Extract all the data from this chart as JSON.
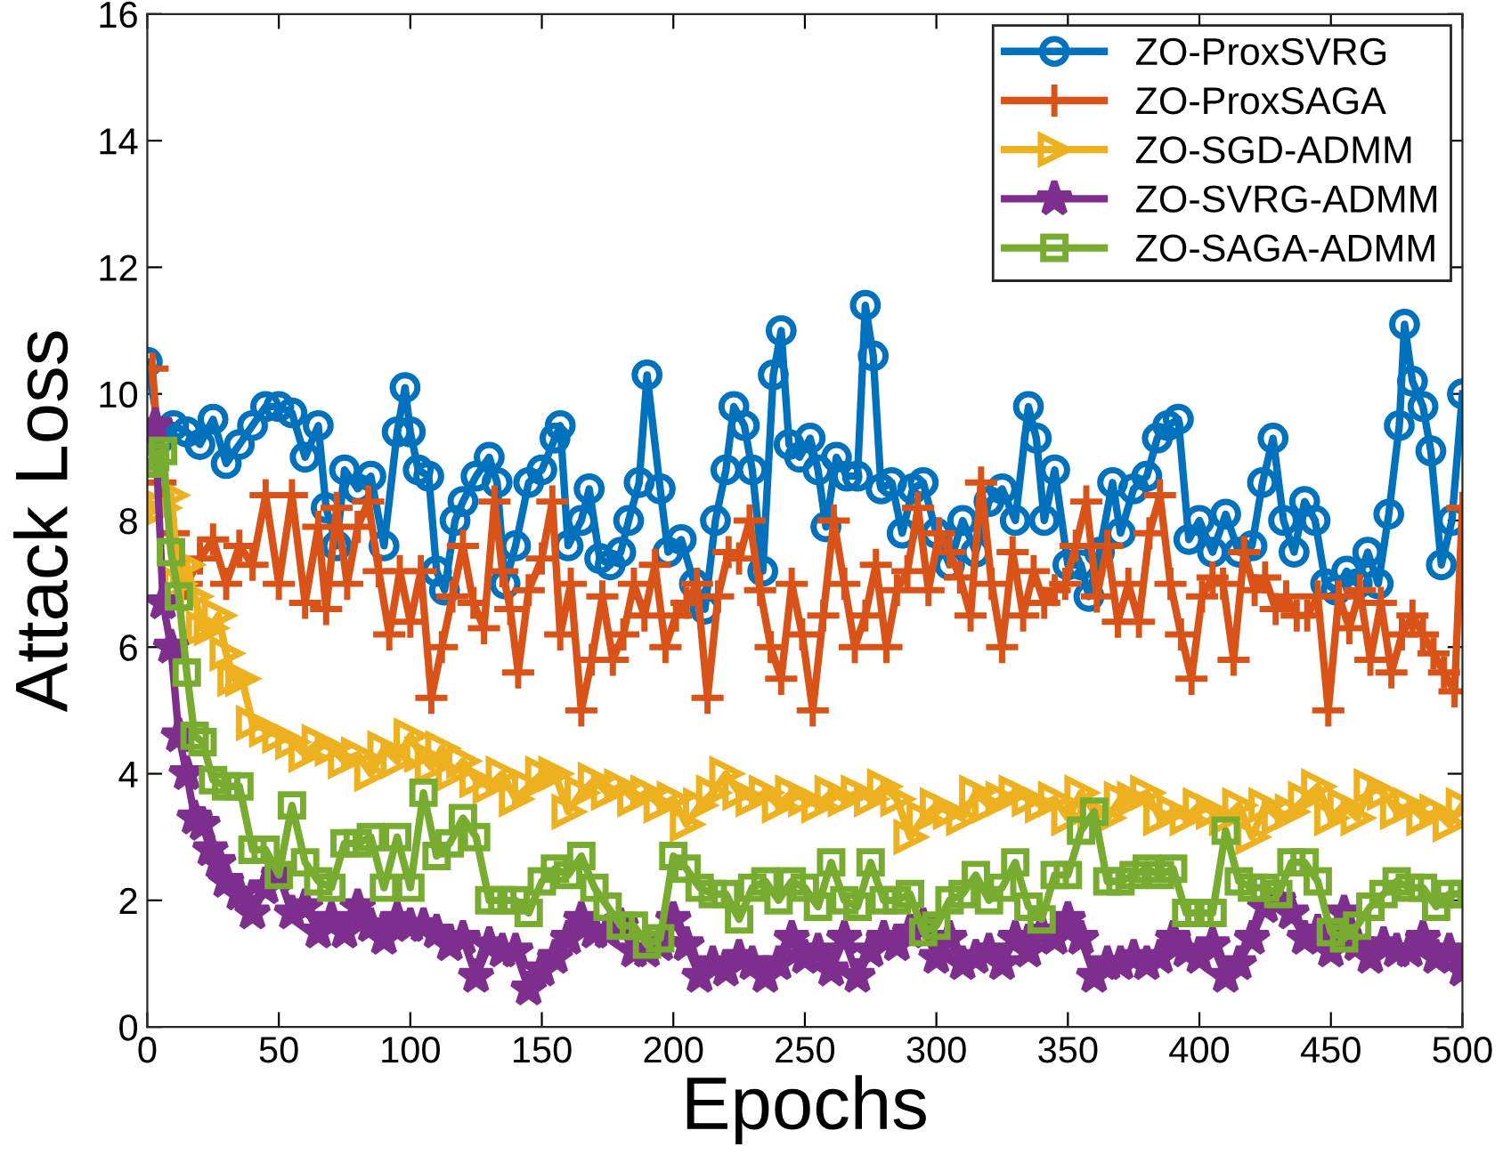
{
  "chart_data": {
    "type": "line",
    "xlabel": "Epochs",
    "ylabel": "Attack Loss",
    "xlim": [
      0,
      500
    ],
    "ylim": [
      0,
      16
    ],
    "xticks": [
      0,
      50,
      100,
      150,
      200,
      250,
      300,
      350,
      400,
      450,
      500
    ],
    "yticks": [
      0,
      2,
      4,
      6,
      8,
      10,
      12,
      14,
      16
    ],
    "grid": false,
    "legend": "top right",
    "line_style": "solid",
    "series": [
      {
        "name": "ZO-ProxSVRG",
        "color": "#0072bd",
        "marker": "circle",
        "x": [
          0,
          5,
          10,
          15,
          20,
          25,
          30,
          35,
          40,
          45,
          50,
          55,
          60,
          65,
          68,
          72,
          75,
          80,
          85,
          90,
          95,
          98,
          100,
          103,
          107,
          110,
          113,
          117,
          120,
          125,
          130,
          133,
          136,
          140,
          145,
          150,
          155,
          157,
          160,
          165,
          168,
          172,
          176,
          180,
          183,
          187,
          190,
          195,
          198,
          203,
          208,
          212,
          216,
          220,
          223,
          227,
          230,
          234,
          238,
          241,
          244,
          248,
          252,
          255,
          258,
          262,
          266,
          270,
          273,
          276,
          279,
          283,
          287,
          291,
          295,
          300,
          305,
          310,
          315,
          320,
          325,
          330,
          335,
          338,
          341,
          345,
          350,
          355,
          358,
          362,
          367,
          370,
          375,
          380,
          384,
          388,
          392,
          396,
          400,
          405,
          410,
          415,
          420,
          424,
          428,
          432,
          436,
          440,
          444,
          448,
          452,
          456,
          460,
          464,
          468,
          472,
          476,
          478,
          481,
          485,
          488,
          492,
          496,
          500
        ],
        "values": [
          10.5,
          9.3,
          9.5,
          9.4,
          9.2,
          9.6,
          8.9,
          9.2,
          9.5,
          9.8,
          9.8,
          9.7,
          9.0,
          9.5,
          8.2,
          7.6,
          8.8,
          8.5,
          8.7,
          7.6,
          9.4,
          10.1,
          9.4,
          8.8,
          8.7,
          7.2,
          6.9,
          8.0,
          8.3,
          8.7,
          9.0,
          8.6,
          7.0,
          7.6,
          8.6,
          8.8,
          9.3,
          9.5,
          7.6,
          8.0,
          8.5,
          7.4,
          7.3,
          7.5,
          8.0,
          8.6,
          10.3,
          8.5,
          7.5,
          7.7,
          7.0,
          6.6,
          8.0,
          8.8,
          9.8,
          9.5,
          8.8,
          7.2,
          10.3,
          11.0,
          9.2,
          9.0,
          9.3,
          8.8,
          7.9,
          9.0,
          8.7,
          8.7,
          11.4,
          10.6,
          8.5,
          8.6,
          7.8,
          8.5,
          8.6,
          7.8,
          7.3,
          8.0,
          7.5,
          8.3,
          8.5,
          8.0,
          9.8,
          9.3,
          8.0,
          8.8,
          7.3,
          7.3,
          6.8,
          7.5,
          8.6,
          7.8,
          8.5,
          8.7,
          9.3,
          9.5,
          9.6,
          7.7,
          8.0,
          7.5,
          8.1,
          7.5,
          7.6,
          8.6,
          9.3,
          8.0,
          7.5,
          8.3,
          8.0,
          7.0,
          6.9,
          7.2,
          7.0,
          7.5,
          7.0,
          8.1,
          9.5,
          11.1,
          10.2,
          9.8,
          9.1,
          7.3,
          8.0,
          10.0
        ]
      },
      {
        "name": "ZO-ProxSAGA",
        "color": "#d95319",
        "marker": "cross",
        "x": [
          2,
          5,
          10,
          15,
          20,
          25,
          30,
          35,
          40,
          45,
          50,
          55,
          60,
          65,
          68,
          72,
          76,
          80,
          84,
          88,
          92,
          96,
          100,
          104,
          108,
          112,
          116,
          120,
          124,
          128,
          132,
          135,
          138,
          141,
          145,
          150,
          154,
          157,
          161,
          165,
          169,
          173,
          177,
          181,
          185,
          189,
          193,
          197,
          201,
          205,
          209,
          213,
          217,
          221,
          225,
          229,
          233,
          237,
          241,
          245,
          249,
          253,
          257,
          261,
          265,
          269,
          273,
          277,
          281,
          285,
          289,
          293,
          297,
          301,
          305,
          309,
          313,
          317,
          321,
          325,
          329,
          333,
          337,
          341,
          345,
          349,
          353,
          357,
          361,
          365,
          369,
          373,
          377,
          381,
          385,
          389,
          393,
          397,
          401,
          405,
          409,
          413,
          417,
          421,
          425,
          429,
          433,
          437,
          441,
          445,
          449,
          453,
          457,
          461,
          465,
          469,
          473,
          477,
          481,
          485,
          489,
          493,
          497,
          500
        ],
        "values": [
          10.4,
          8.6,
          7.8,
          7.0,
          7.4,
          7.7,
          7.0,
          7.6,
          7.3,
          8.4,
          7.0,
          8.4,
          6.7,
          7.9,
          6.6,
          8.2,
          7.0,
          7.9,
          8.3,
          7.2,
          6.2,
          7.2,
          6.4,
          7.2,
          5.2,
          6.0,
          6.8,
          7.6,
          6.7,
          6.3,
          8.3,
          7.2,
          6.6,
          5.6,
          6.9,
          7.4,
          8.3,
          6.2,
          7.0,
          5.0,
          5.8,
          6.8,
          5.8,
          6.2,
          7.0,
          6.5,
          7.3,
          6.0,
          6.5,
          6.7,
          7.0,
          5.2,
          6.8,
          7.5,
          7.4,
          8.0,
          6.9,
          6.0,
          5.5,
          7.0,
          6.2,
          5.0,
          6.5,
          8.0,
          7.0,
          6.0,
          6.5,
          7.3,
          6.0,
          6.9,
          7.2,
          8.2,
          6.9,
          7.8,
          7.5,
          7.1,
          6.5,
          8.6,
          7.0,
          6.0,
          7.5,
          6.5,
          7.2,
          6.7,
          6.9,
          7.0,
          7.6,
          8.3,
          6.8,
          7.6,
          6.4,
          7.0,
          6.4,
          7.8,
          8.4,
          7.0,
          6.2,
          5.5,
          6.8,
          7.1,
          7.0,
          5.8,
          7.5,
          6.9,
          7.1,
          6.6,
          6.8,
          6.5,
          6.5,
          6.8,
          5.0,
          6.8,
          6.3,
          6.9,
          5.8,
          6.7,
          5.6,
          6.2,
          6.5,
          6.2,
          5.9,
          5.6,
          5.3,
          8.2
        ]
      },
      {
        "name": "ZO-SGD-ADMM",
        "color": "#edb120",
        "marker": "triangle",
        "x": [
          0,
          6,
          9,
          12,
          15,
          18,
          21,
          24,
          27,
          30,
          33,
          36,
          40,
          45,
          50,
          55,
          60,
          65,
          70,
          75,
          80,
          85,
          90,
          95,
          100,
          104,
          108,
          112,
          116,
          120,
          125,
          130,
          135,
          140,
          145,
          150,
          155,
          160,
          165,
          170,
          175,
          180,
          185,
          190,
          195,
          200,
          205,
          210,
          215,
          220,
          225,
          230,
          235,
          240,
          245,
          250,
          255,
          260,
          265,
          270,
          275,
          280,
          285,
          290,
          295,
          300,
          305,
          310,
          315,
          320,
          325,
          330,
          335,
          340,
          345,
          350,
          355,
          360,
          365,
          370,
          375,
          380,
          385,
          390,
          395,
          400,
          405,
          410,
          415,
          420,
          425,
          430,
          435,
          440,
          445,
          450,
          455,
          460,
          465,
          470,
          475,
          480,
          485,
          490,
          495,
          500
        ],
        "values": [
          8.2,
          8.2,
          8.4,
          7.0,
          7.3,
          6.8,
          6.3,
          6.3,
          6.5,
          5.9,
          5.5,
          5.5,
          4.8,
          4.7,
          4.6,
          4.5,
          4.3,
          4.5,
          4.4,
          4.2,
          4.3,
          4.0,
          4.4,
          4.2,
          4.6,
          4.3,
          4.1,
          4.4,
          4.0,
          4.2,
          3.9,
          3.8,
          4.0,
          3.6,
          3.8,
          4.0,
          4.0,
          3.4,
          3.7,
          3.9,
          3.7,
          3.8,
          3.6,
          3.7,
          3.5,
          3.6,
          3.2,
          3.5,
          3.7,
          4.0,
          3.7,
          3.6,
          3.7,
          3.5,
          3.7,
          3.6,
          3.5,
          3.7,
          3.6,
          3.7,
          3.6,
          3.8,
          3.6,
          3.0,
          3.3,
          3.5,
          3.4,
          3.3,
          3.7,
          3.5,
          3.6,
          3.7,
          3.6,
          3.5,
          3.6,
          3.3,
          3.7,
          3.4,
          3.3,
          3.6,
          3.6,
          3.7,
          3.3,
          3.4,
          3.3,
          3.5,
          3.4,
          3.3,
          3.5,
          3.0,
          3.5,
          3.3,
          3.4,
          3.6,
          3.8,
          3.3,
          3.5,
          3.3,
          3.8,
          3.7,
          3.4,
          3.5,
          3.3,
          3.4,
          3.2,
          3.5
        ]
      },
      {
        "name": "ZO-SVRG-ADMM",
        "color": "#7e2f8e",
        "marker": "star",
        "x": [
          0,
          3,
          6,
          9,
          12,
          15,
          18,
          21,
          24,
          27,
          30,
          35,
          40,
          45,
          50,
          55,
          60,
          65,
          70,
          75,
          80,
          85,
          90,
          95,
          100,
          105,
          110,
          115,
          120,
          125,
          130,
          135,
          140,
          145,
          150,
          155,
          160,
          165,
          170,
          175,
          180,
          185,
          190,
          195,
          200,
          205,
          210,
          215,
          220,
          225,
          230,
          235,
          240,
          245,
          250,
          255,
          260,
          265,
          270,
          275,
          280,
          285,
          290,
          295,
          300,
          305,
          310,
          315,
          320,
          325,
          330,
          335,
          340,
          345,
          350,
          355,
          360,
          365,
          370,
          375,
          380,
          385,
          390,
          395,
          400,
          405,
          410,
          415,
          420,
          425,
          430,
          435,
          440,
          445,
          450,
          455,
          460,
          465,
          470,
          475,
          480,
          485,
          490,
          495,
          500
        ],
        "values": [
          9.2,
          9.5,
          6.7,
          6.0,
          4.6,
          4.0,
          3.3,
          3.2,
          2.8,
          2.6,
          2.3,
          2.1,
          1.8,
          2.2,
          2.4,
          1.8,
          1.9,
          1.5,
          1.7,
          1.5,
          1.9,
          1.6,
          1.4,
          1.7,
          1.6,
          1.6,
          1.5,
          1.3,
          1.4,
          0.8,
          1.3,
          1.2,
          1.2,
          0.6,
          0.9,
          1.1,
          1.4,
          1.7,
          1.5,
          1.5,
          1.6,
          1.2,
          1.2,
          1.3,
          1.7,
          1.3,
          0.8,
          1.0,
          0.9,
          1.1,
          1.0,
          0.8,
          1.0,
          1.4,
          1.1,
          1.2,
          0.9,
          1.4,
          0.8,
          1.2,
          1.4,
          1.3,
          1.5,
          1.6,
          1.1,
          1.4,
          1.0,
          1.1,
          1.2,
          1.0,
          1.4,
          1.2,
          1.5,
          1.4,
          1.7,
          1.4,
          0.8,
          1.0,
          1.0,
          1.1,
          1.0,
          1.1,
          1.4,
          1.2,
          1.1,
          1.3,
          0.8,
          1.0,
          1.4,
          1.9,
          2.0,
          1.8,
          1.4,
          1.5,
          1.2,
          1.8,
          1.3,
          1.1,
          1.3,
          1.2,
          1.2,
          1.4,
          1.1,
          1.2,
          0.9
        ]
      },
      {
        "name": "ZO-SAGA-ADMM",
        "color": "#77ac30",
        "marker": "square",
        "x": [
          0,
          3,
          6,
          9,
          12,
          15,
          18,
          21,
          25,
          30,
          35,
          40,
          45,
          50,
          55,
          60,
          65,
          70,
          75,
          80,
          85,
          90,
          95,
          100,
          105,
          110,
          115,
          120,
          125,
          130,
          135,
          140,
          145,
          150,
          155,
          160,
          165,
          170,
          175,
          180,
          185,
          190,
          195,
          200,
          205,
          210,
          215,
          220,
          225,
          230,
          235,
          240,
          245,
          250,
          255,
          260,
          265,
          270,
          275,
          280,
          285,
          290,
          295,
          300,
          305,
          310,
          315,
          320,
          325,
          330,
          335,
          340,
          345,
          350,
          355,
          360,
          365,
          370,
          375,
          380,
          385,
          390,
          395,
          400,
          405,
          410,
          415,
          420,
          425,
          430,
          435,
          440,
          445,
          450,
          455,
          460,
          465,
          470,
          475,
          480,
          485,
          490,
          495,
          500
        ],
        "values": [
          8.9,
          9.0,
          9.1,
          7.5,
          6.8,
          5.6,
          4.6,
          4.5,
          3.9,
          3.8,
          3.8,
          2.8,
          2.8,
          2.4,
          3.5,
          2.6,
          2.3,
          2.2,
          2.9,
          2.9,
          3.0,
          2.2,
          3.0,
          2.2,
          3.7,
          2.7,
          2.9,
          3.3,
          3.0,
          2.0,
          2.0,
          2.0,
          1.8,
          2.3,
          2.5,
          2.4,
          2.7,
          2.2,
          1.9,
          1.6,
          1.6,
          1.3,
          1.4,
          2.7,
          2.5,
          2.2,
          2.1,
          2.1,
          1.7,
          2.2,
          2.3,
          2.0,
          2.3,
          2.2,
          1.9,
          2.6,
          2.0,
          1.9,
          2.6,
          2.0,
          2.0,
          2.1,
          1.5,
          1.6,
          2.0,
          2.1,
          2.4,
          2.0,
          2.2,
          2.6,
          1.9,
          1.7,
          2.4,
          2.4,
          3.1,
          3.4,
          2.3,
          2.3,
          2.4,
          2.5,
          2.4,
          2.5,
          1.8,
          1.8,
          1.8,
          3.1,
          2.3,
          2.2,
          2.2,
          2.1,
          2.6,
          2.6,
          2.3,
          1.5,
          1.4,
          1.6,
          1.9,
          2.1,
          2.3,
          2.2,
          2.2,
          1.9,
          2.1,
          2.1
        ]
      }
    ]
  }
}
